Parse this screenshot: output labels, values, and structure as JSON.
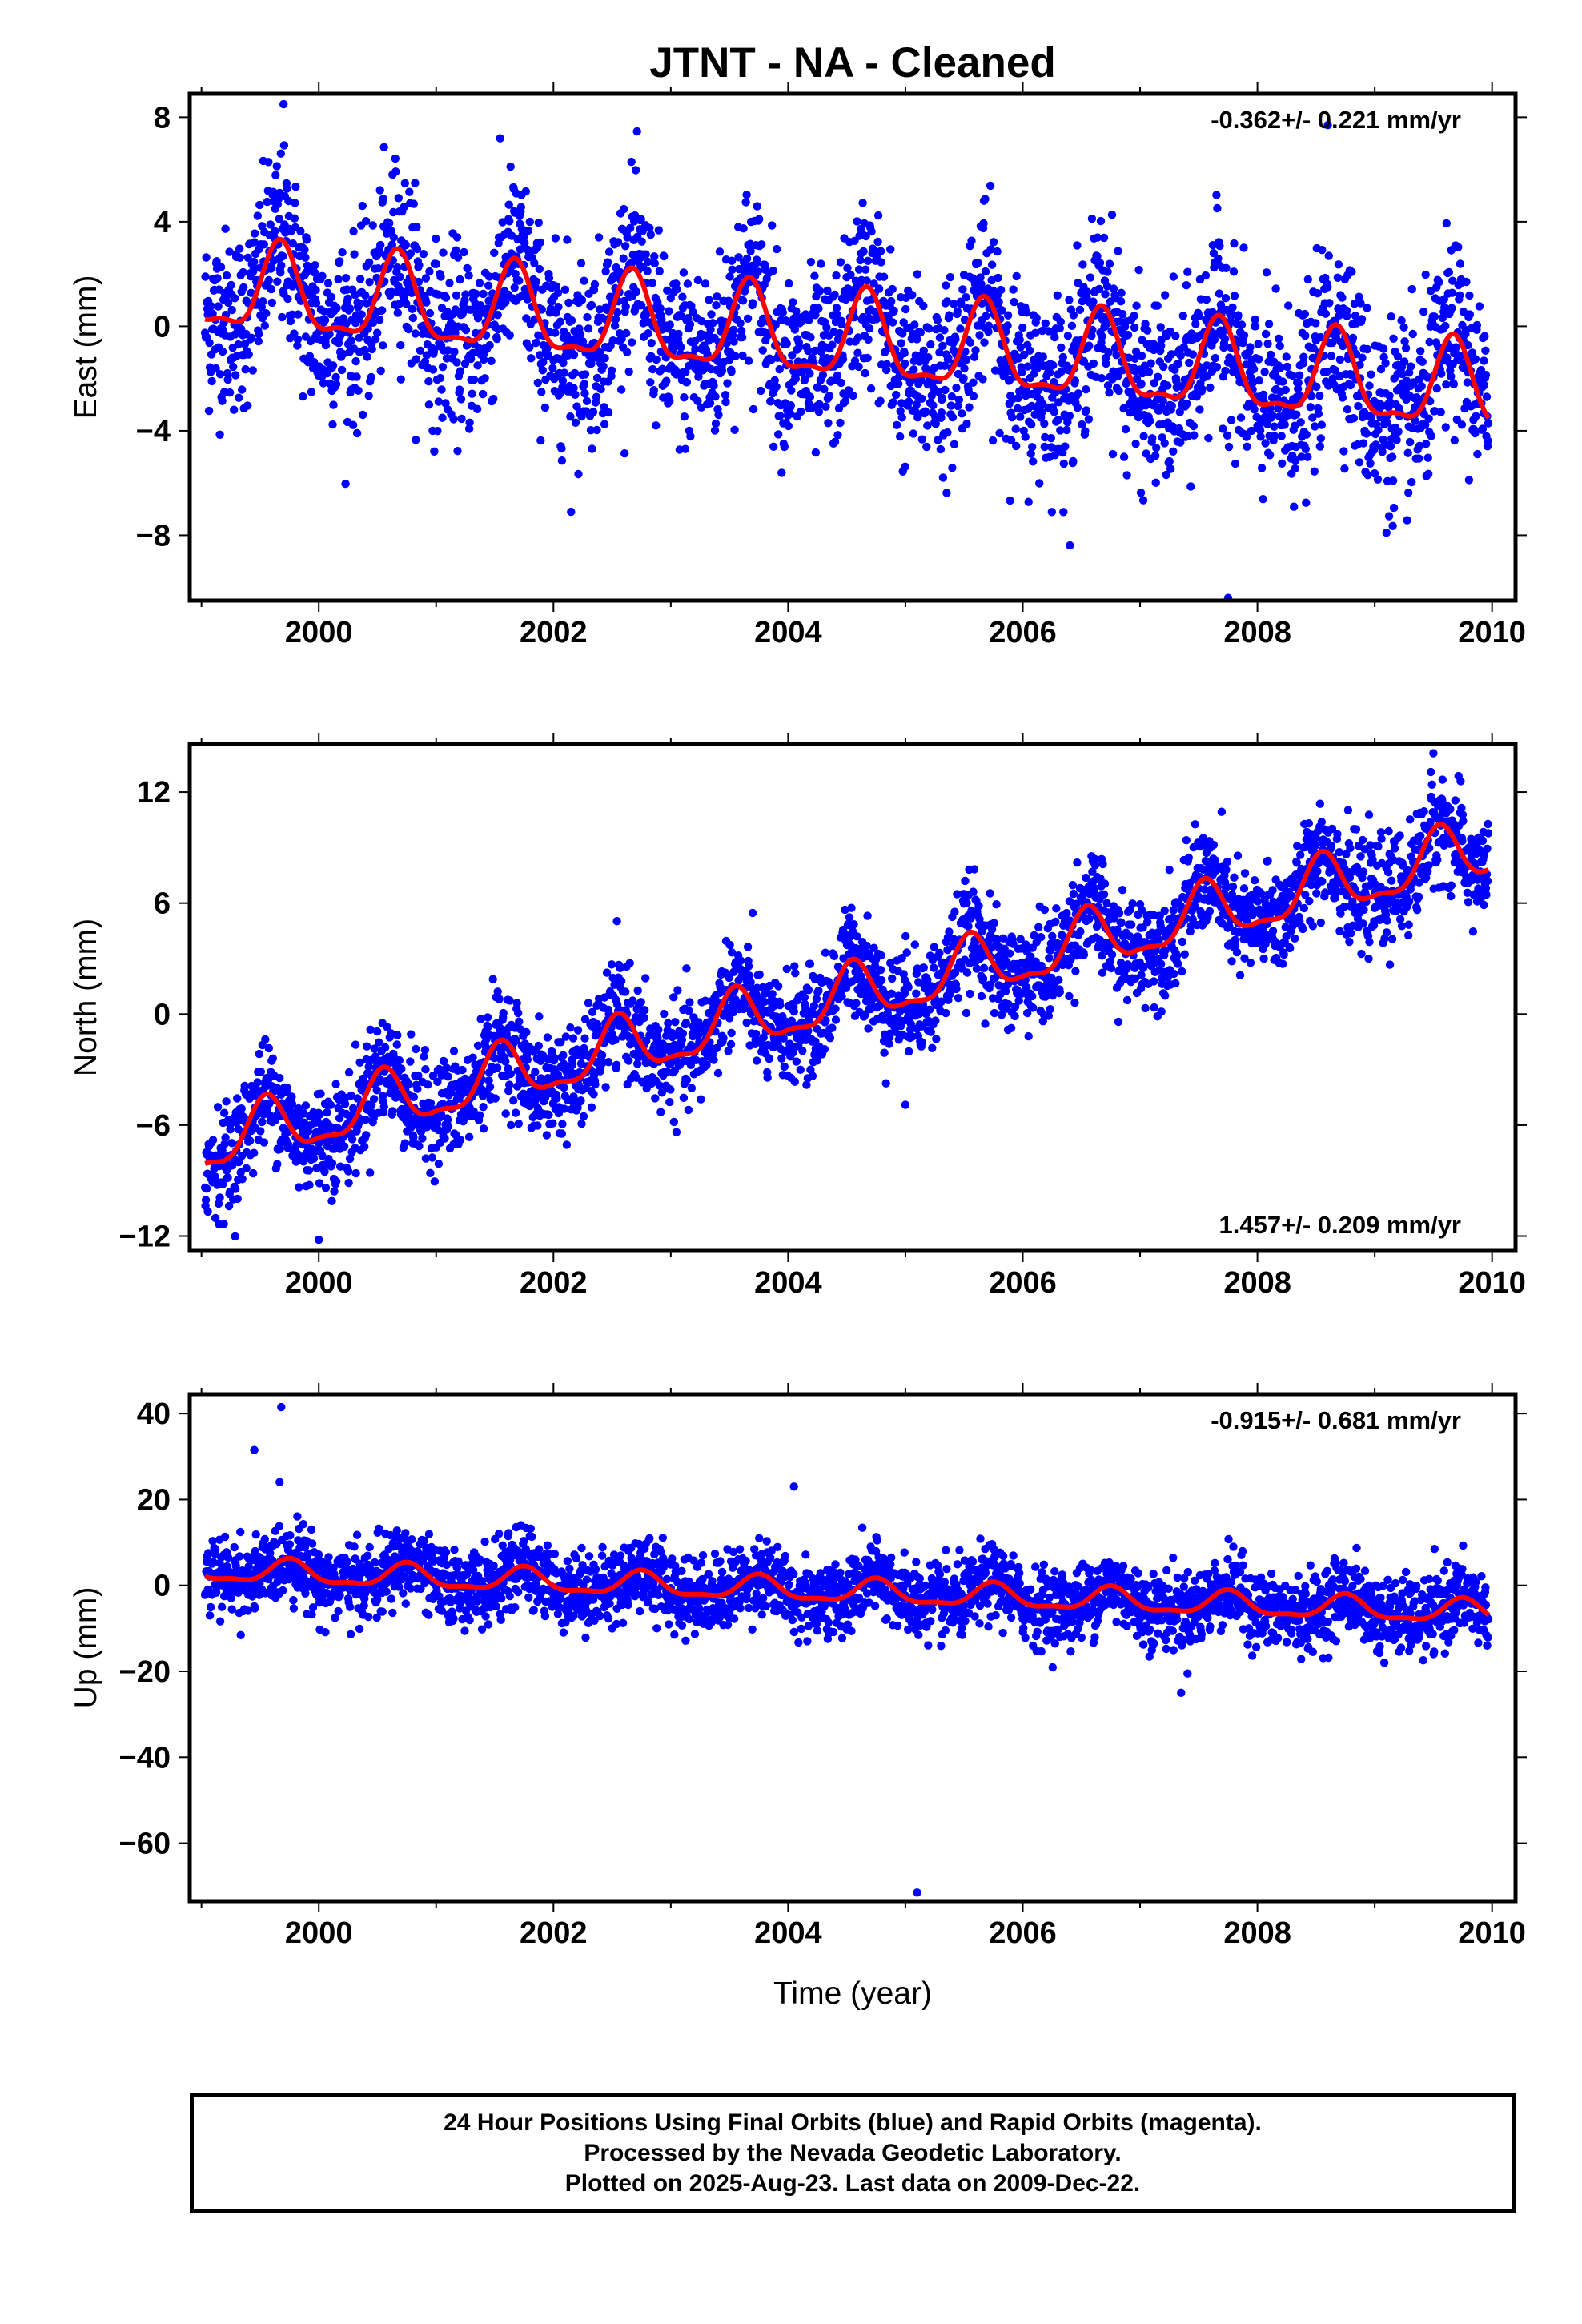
{
  "title": "JTNT  - NA - Cleaned",
  "colors": {
    "points": "#0000ff",
    "model": "#ff0000",
    "frame": "#000000"
  },
  "chart_data": [
    {
      "type": "scatter",
      "component": "east",
      "ylabel": "East (mm)",
      "xlabel": "",
      "xlim": [
        1998.9,
        2010.2
      ],
      "ylim": [
        -10.5,
        8.9
      ],
      "xticks": [
        2000,
        2002,
        2004,
        2006,
        2008,
        2010
      ],
      "yticks": [
        8,
        4,
        0,
        -4,
        -8
      ],
      "ytick_labels": [
        "8",
        "4",
        "0",
        "−4",
        "−8"
      ],
      "rate_label": "-0.362+/- 0.221 mm/yr",
      "rate_position": "top-right",
      "series": [
        {
          "style": "points",
          "start_year": 1999.03,
          "end_year": 2009.97,
          "trend_mm_per_yr": -0.362,
          "offset_mm": 1.4,
          "annual_amp_mm": 1.6,
          "noise_sd_mm": 1.7,
          "peak_phase_year_fraction": 0.67
        },
        {
          "style": "model-line",
          "trend_mm_per_yr": -0.362,
          "offset_mm": 1.4,
          "annual_amp_mm": 1.6,
          "peak_phase_year_fraction": 0.67
        }
      ],
      "outliers": [
        [
          1999.7,
          8.5
        ],
        [
          2002.15,
          -7.1
        ],
        [
          2007.75,
          -10.4
        ],
        [
          2008.6,
          7.7
        ],
        [
          2009.1,
          -7.9
        ]
      ]
    },
    {
      "type": "scatter",
      "component": "north",
      "ylabel": "North (mm)",
      "xlabel": "",
      "xlim": [
        1998.9,
        2010.2
      ],
      "ylim": [
        -12.8,
        14.6
      ],
      "xticks": [
        2000,
        2002,
        2004,
        2006,
        2008,
        2010
      ],
      "yticks": [
        12,
        6,
        0,
        -6,
        -12
      ],
      "ytick_labels": [
        "12",
        "6",
        "0",
        "−6",
        "−12"
      ],
      "rate_label": "1.457+/- 0.209 mm/yr",
      "rate_position": "bottom-right",
      "series": [
        {
          "style": "points",
          "start_year": 1999.03,
          "end_year": 2009.97,
          "trend_mm_per_yr": 1.457,
          "offset_mm": -7.1,
          "annual_amp_mm": 1.5,
          "noise_sd_mm": 1.4,
          "peak_phase_year_fraction": 0.55
        },
        {
          "style": "model-line",
          "trend_mm_per_yr": 1.457,
          "offset_mm": -7.1,
          "annual_amp_mm": 1.5,
          "peak_phase_year_fraction": 0.55
        }
      ],
      "outliers": [
        [
          2000.0,
          -12.2
        ],
        [
          2009.5,
          14.1
        ],
        [
          2005.0,
          -4.9
        ]
      ]
    },
    {
      "type": "scatter",
      "component": "up",
      "ylabel": "Up (mm)",
      "xlabel": "Time (year)",
      "xlim": [
        1998.9,
        2010.2
      ],
      "ylim": [
        -73.5,
        44.5
      ],
      "xticks": [
        2000,
        2002,
        2004,
        2006,
        2008,
        2010
      ],
      "yticks": [
        40,
        20,
        0,
        -20,
        -40,
        -60
      ],
      "ytick_labels": [
        "40",
        "20",
        "0",
        "−20",
        "−40",
        "−60"
      ],
      "rate_label": "-0.915+/- 0.681 mm/yr",
      "rate_position": "top-right",
      "series": [
        {
          "style": "points",
          "start_year": 1999.03,
          "end_year": 2009.97,
          "trend_mm_per_yr": -0.915,
          "offset_mm": 3.5,
          "annual_amp_mm": 2.6,
          "noise_sd_mm": 4.3,
          "peak_phase_year_fraction": 0.75
        },
        {
          "style": "model-line",
          "trend_mm_per_yr": -0.915,
          "offset_mm": 3.5,
          "annual_amp_mm": 2.6,
          "peak_phase_year_fraction": 0.75
        }
      ],
      "outliers": [
        [
          1999.68,
          41.5
        ],
        [
          1999.45,
          31.5
        ],
        [
          2005.1,
          -71.5
        ],
        [
          2007.35,
          -25
        ],
        [
          2004.05,
          23
        ]
      ]
    }
  ],
  "footer": {
    "line1": "24 Hour Positions Using Final Orbits (blue) and Rapid Orbits (magenta).",
    "line2": "Processed by the Nevada Geodetic Laboratory.",
    "line3": "Plotted on 2025-Aug-23. Last data on 2009-Dec-22."
  }
}
